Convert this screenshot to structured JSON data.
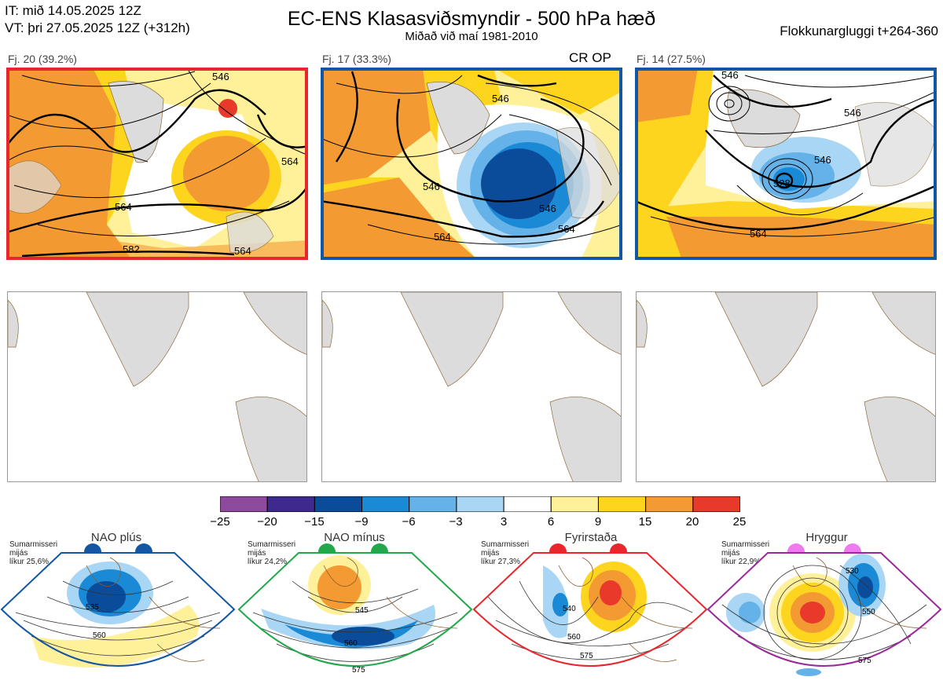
{
  "header": {
    "it_line": "IT: mið 14.05.2025 12Z",
    "vt_line": "VT: þri 27.05.2025 12Z  (+312h)",
    "title": "EC-ENS Klasasviðsmyndir - 500 hPa hæð",
    "subtitle": "Miðað við maí 1981-2010",
    "window": "Flokkunargluggi t+264-360"
  },
  "clusters": [
    {
      "label": "Fj. 20 (39.2%)",
      "border_color": "#e8262c",
      "contours": [
        "546",
        "564",
        "582",
        "564",
        "564"
      ],
      "extra": ""
    },
    {
      "label": "Fj. 17 (33.3%)",
      "border_color": "#1256a4",
      "contours": [
        "546",
        "546",
        "546",
        "564",
        "564"
      ],
      "extra": "CR OP"
    },
    {
      "label": "Fj. 14 (27.5%)",
      "border_color": "#1256a4",
      "contours": [
        "546",
        "546",
        "528",
        "564",
        "546"
      ],
      "extra": ""
    }
  ],
  "colorbar": {
    "labels": [
      "−25",
      "−20",
      "−15",
      "−9",
      "−6",
      "−3",
      "3",
      "6",
      "9",
      "15",
      "20",
      "25"
    ],
    "colors": [
      "#8e4a9c",
      "#3e2a8e",
      "#0a4c9a",
      "#1a8ad6",
      "#64b2e8",
      "#a9d6f5",
      "#ffffff",
      "#fff09a",
      "#fdd41e",
      "#f39a32",
      "#e8392b",
      "#b5161c"
    ]
  },
  "regimes": [
    {
      "name": "NAO plús",
      "season": "Sumarmisseri",
      "median": "mijás",
      "likelihood": "líkur 25,6%",
      "color": "#1256a4",
      "contours": [
        "535",
        "560"
      ]
    },
    {
      "name": "NAO mínus",
      "season": "Sumarmisseri",
      "median": "mijás",
      "likelihood": "líkur 24,2%",
      "color": "#22a84a",
      "contours": [
        "545",
        "560",
        "575"
      ]
    },
    {
      "name": "Fyrirstaða",
      "season": "Sumarmisseri",
      "median": "mijás",
      "likelihood": "líkur 27,3%",
      "color": "#e8262c",
      "contours": [
        "540",
        "560",
        "575"
      ]
    },
    {
      "name": "Hryggur",
      "season": "Sumarmisseri",
      "median": "mijás",
      "likelihood": "líkur 22,9%",
      "color": "#9a2a9a",
      "dot_color": "#ee7aee",
      "contours": [
        "530",
        "550",
        "575"
      ]
    }
  ]
}
